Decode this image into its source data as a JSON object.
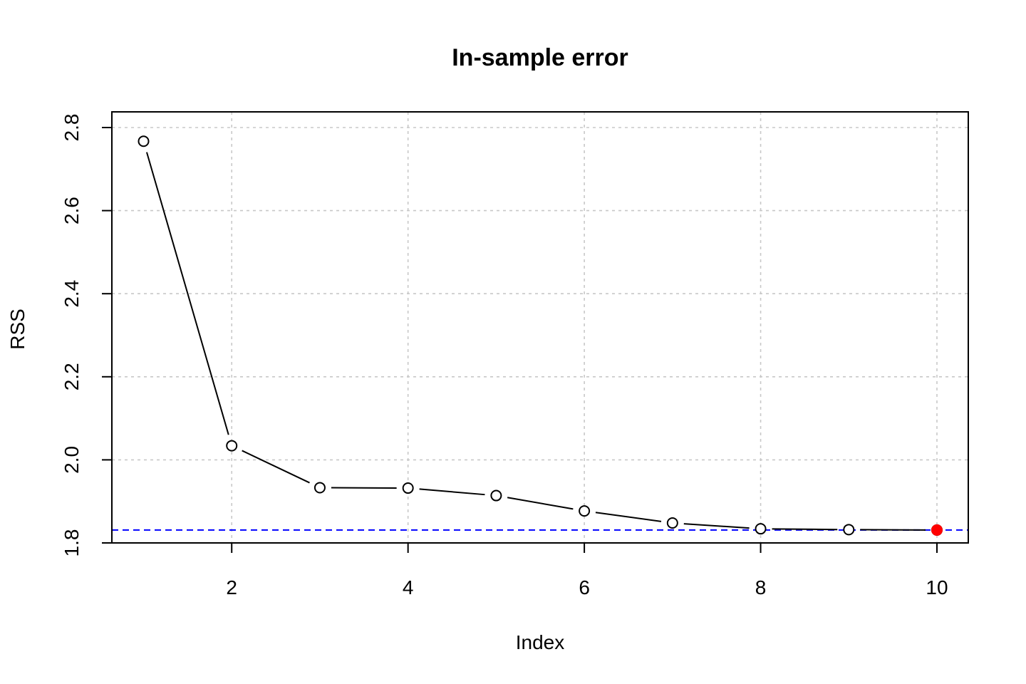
{
  "chart_data": {
    "type": "line",
    "title": "In-sample error",
    "xlabel": "Index",
    "ylabel": "RSS",
    "x": [
      1,
      2,
      3,
      4,
      5,
      6,
      7,
      8,
      9,
      10
    ],
    "values": [
      2.767,
      2.034,
      1.933,
      1.932,
      1.914,
      1.877,
      1.848,
      1.834,
      1.832,
      1.831
    ],
    "xlim": [
      0.64,
      10.36
    ],
    "ylim": [
      1.8,
      2.8
    ],
    "x_ticks": [
      2,
      4,
      6,
      8,
      10
    ],
    "x_tick_labels": [
      "2",
      "4",
      "6",
      "8",
      "10"
    ],
    "y_ticks": [
      1.8,
      2.0,
      2.2,
      2.4,
      2.6,
      2.8
    ],
    "y_tick_labels": [
      "1.8",
      "2.0",
      "2.2",
      "2.4",
      "2.6",
      "2.8"
    ],
    "grid": true,
    "reference_line": {
      "y": 1.831,
      "color": "#0000ff",
      "style": "dashed"
    },
    "highlight_point": {
      "x": 10,
      "y": 1.831,
      "color": "#ff0000"
    },
    "colors": {
      "series": "#000000",
      "grid": "#c8c8c8"
    }
  }
}
